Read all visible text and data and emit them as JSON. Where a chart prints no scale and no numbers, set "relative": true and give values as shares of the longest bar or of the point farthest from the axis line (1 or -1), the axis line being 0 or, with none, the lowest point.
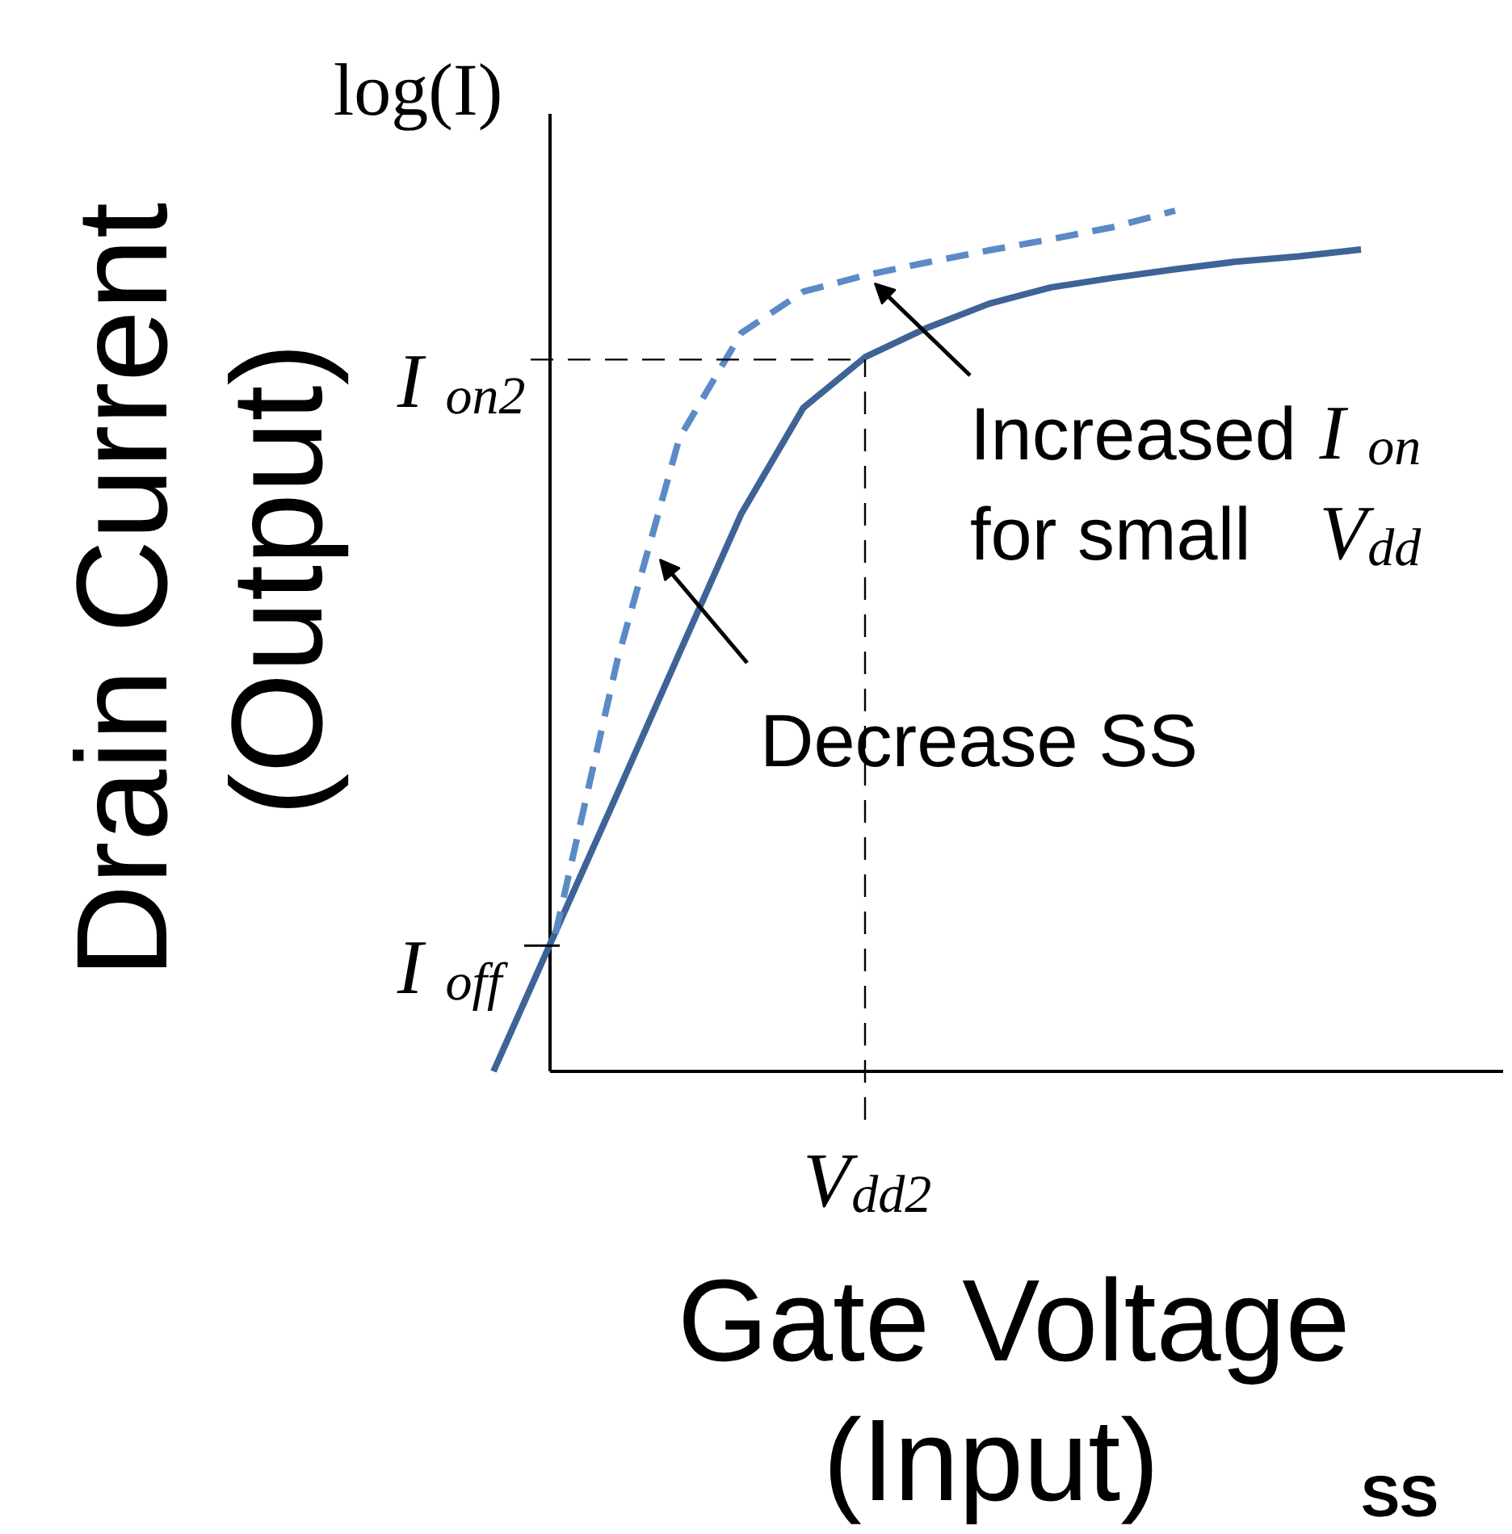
{
  "chart_data": {
    "type": "line",
    "relative": true,
    "xlabel": "Gate Voltage\n(Input)",
    "ylabel": "Drain Current\n(Output)",
    "categories": [
      null,
      null,
      null,
      null,
      null,
      null,
      null,
      null,
      null,
      null,
      null,
      null,
      null,
      null,
      null
    ],
    "series": [
      {
        "color": "#3e6396",
        "line_style": "solid",
        "values": [
          0.0,
          0.162,
          0.323,
          0.486,
          0.648,
          0.771,
          0.83,
          0.864,
          0.892,
          0.911,
          0.922,
          0.932,
          0.941,
          0.947,
          0.955
        ]
      },
      {
        "color": "#5b8ac6",
        "line_style": "dashed",
        "values": [
          null,
          0.16,
          0.478,
          0.736,
          0.858,
          0.906,
          0.925,
          0.94,
          0.954,
          0.967,
          0.981,
          1.0,
          null,
          null,
          null
        ]
      }
    ],
    "ref_lines": [
      {
        "axis": "y",
        "value": 0.827,
        "label": "I$_{on2}$",
        "line_style": "dashed"
      },
      {
        "axis": "y",
        "value": 0.146,
        "label": "I$_{off}$",
        "line_style": "solid"
      }
    ],
    "annotations": [
      "log(I)",
      "Increased I$_{on}$\nfor small V$_{dd}$",
      "Decrease SS",
      "SS",
      "V$_{dd2}$"
    ]
  }
}
